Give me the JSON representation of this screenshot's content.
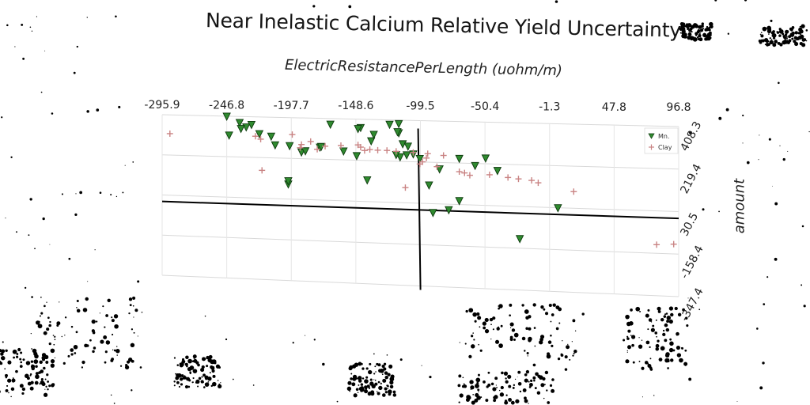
{
  "chart_data": {
    "type": "scatter",
    "title": "Near Inelastic Calcium Relative Yield Uncertainty",
    "xlabel": "ElectricResistancePerLength (uohm/m)",
    "ylabel": "amount",
    "x_ticks": [
      "-295.9",
      "-246.8",
      "-197.7",
      "-148.6",
      "-99.5",
      "-50.4",
      "-1.3",
      "47.8",
      "96.8"
    ],
    "y_ticks": [
      "408.3",
      "219.4",
      "30.5",
      "-158.4",
      "-347.4"
    ],
    "xlim": [
      -295.9,
      96.8
    ],
    "ylim": [
      -347.4,
      408.3
    ],
    "grid": true,
    "legend_position": "top-right",
    "series": [
      {
        "name": "Mn.",
        "marker": "triangle-down",
        "color": "#2f8a2f",
        "points": [
          [
            -246.8,
            408
          ],
          [
            -237,
            380
          ],
          [
            -232,
            360
          ],
          [
            -236,
            352
          ],
          [
            -228,
            372
          ],
          [
            -245,
            320
          ],
          [
            -222,
            330
          ],
          [
            -213,
            320
          ],
          [
            -210,
            280
          ],
          [
            -199,
            278
          ],
          [
            -176,
            275
          ],
          [
            -190,
            250
          ],
          [
            -187,
            256
          ],
          [
            -175,
            278
          ],
          [
            -158,
            260
          ],
          [
            -148,
            240
          ],
          [
            -115,
            240
          ],
          [
            -137,
            310
          ],
          [
            -135,
            340
          ],
          [
            -116,
            350
          ],
          [
            -145,
            370
          ],
          [
            -168,
            382
          ],
          [
            -147,
            365
          ],
          [
            -123,
            388
          ],
          [
            -116,
            392
          ],
          [
            -117,
            355
          ],
          [
            -113,
            300
          ],
          [
            -105,
            255
          ],
          [
            -118,
            250
          ],
          [
            -110,
            250
          ],
          [
            -100,
            235
          ],
          [
            -70,
            240
          ],
          [
            -50,
            245
          ],
          [
            -200,
            100
          ],
          [
            -200,
            115
          ],
          [
            -140,
            130
          ],
          [
            -58,
            210
          ],
          [
            -41,
            190
          ],
          [
            -85,
            190
          ],
          [
            -93,
            115
          ],
          [
            -70,
            48
          ],
          [
            -78,
            5
          ],
          [
            -90,
            -10
          ],
          [
            -24,
            -115
          ],
          [
            5,
            30
          ],
          [
            -109,
            290
          ]
        ]
      },
      {
        "name": "Clay",
        "marker": "plus",
        "color": "#c98383",
        "points": [
          [
            -290,
            320
          ],
          [
            -221,
            305
          ],
          [
            -225,
            318
          ],
          [
            -197,
            330
          ],
          [
            -183,
            300
          ],
          [
            -191,
            270
          ],
          [
            -190,
            285
          ],
          [
            -172,
            280
          ],
          [
            -178,
            265
          ],
          [
            -160,
            285
          ],
          [
            -147,
            290
          ],
          [
            -145,
            280
          ],
          [
            -142,
            265
          ],
          [
            -138,
            270
          ],
          [
            -132,
            268
          ],
          [
            -125,
            268
          ],
          [
            -118,
            265
          ],
          [
            -105,
            262
          ],
          [
            -94,
            258
          ],
          [
            -82,
            252
          ],
          [
            -95,
            238
          ],
          [
            -98,
            220
          ],
          [
            -100,
            210
          ],
          [
            -87,
            200
          ],
          [
            -70,
            180
          ],
          [
            -66,
            175
          ],
          [
            -62,
            165
          ],
          [
            -47,
            170
          ],
          [
            -33,
            160
          ],
          [
            -25,
            155
          ],
          [
            -15,
            150
          ],
          [
            -10,
            140
          ],
          [
            17,
            105
          ],
          [
            80,
            -120
          ],
          [
            93,
            -115
          ],
          [
            -111,
            100
          ],
          [
            -220,
            160
          ]
        ]
      }
    ]
  }
}
